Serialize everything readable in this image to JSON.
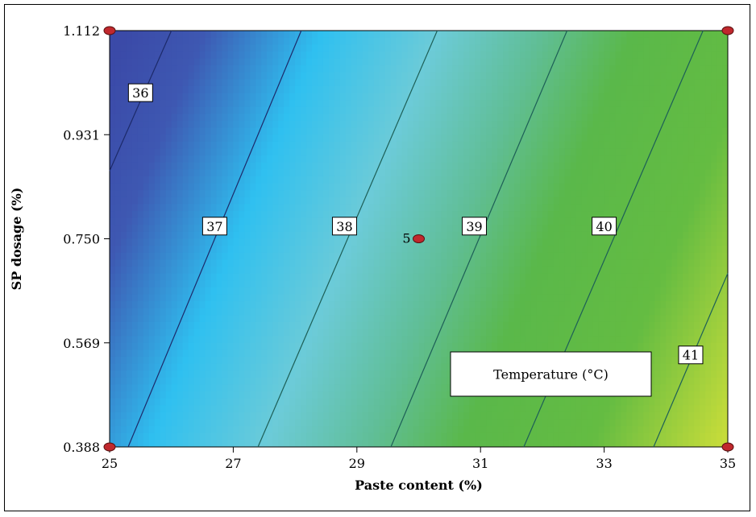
{
  "chart_data": {
    "type": "heatmap",
    "subtype": "contour",
    "title": "",
    "legend_text": "Temperature (°C)",
    "xlabel": "Paste content (%)",
    "ylabel": "SP dosage (%)",
    "xlim": [
      25,
      35
    ],
    "ylim": [
      0.388,
      1.112
    ],
    "x_ticks": [
      "25",
      "27",
      "29",
      "31",
      "33",
      "35"
    ],
    "y_ticks": [
      "0.388",
      "0.569",
      "0.750",
      "0.931",
      "1.112"
    ],
    "z_range": [
      35.7,
      41.6
    ],
    "colormap": [
      "#3b4aa8",
      "#2fc0f0",
      "#6ccbd8",
      "#5ab84a",
      "#c6dc3a"
    ],
    "contours": [
      {
        "level": 36,
        "label": "36",
        "points": [
          [
            25.0,
            0.868
          ],
          [
            26.0,
            1.112
          ]
        ],
        "label_at": [
          25.5,
          1.004
        ]
      },
      {
        "level": 37,
        "label": "37",
        "points": [
          [
            25.3,
            0.388
          ],
          [
            28.1,
            1.112
          ]
        ],
        "label_at": [
          26.7,
          0.772
        ]
      },
      {
        "level": 38,
        "label": "38",
        "points": [
          [
            27.4,
            0.388
          ],
          [
            30.3,
            1.112
          ]
        ],
        "label_at": [
          28.8,
          0.772
        ]
      },
      {
        "level": 39,
        "label": "39",
        "points": [
          [
            29.55,
            0.388
          ],
          [
            32.4,
            1.112
          ]
        ],
        "label_at": [
          30.9,
          0.772
        ]
      },
      {
        "level": 40,
        "label": "40",
        "points": [
          [
            31.7,
            0.388
          ],
          [
            34.6,
            1.112
          ]
        ],
        "label_at": [
          33.0,
          0.772
        ]
      },
      {
        "level": 41,
        "label": "41",
        "points": [
          [
            33.8,
            0.388
          ],
          [
            35.0,
            0.69
          ]
        ],
        "label_at": [
          34.4,
          0.548
        ]
      }
    ],
    "design_points": [
      {
        "x": 25,
        "y": 0.388,
        "label": ""
      },
      {
        "x": 25,
        "y": 1.112,
        "label": ""
      },
      {
        "x": 35,
        "y": 0.388,
        "label": ""
      },
      {
        "x": 35,
        "y": 1.112,
        "label": ""
      },
      {
        "x": 30,
        "y": 0.75,
        "label": "5"
      }
    ],
    "point_color": "#c0282d"
  }
}
